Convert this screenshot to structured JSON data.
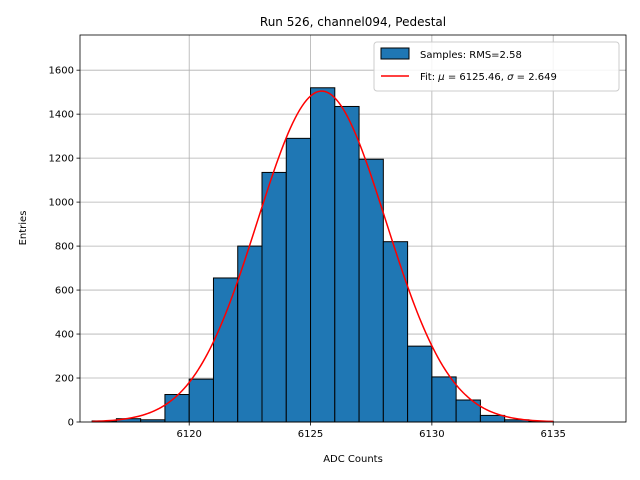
{
  "chart_data": {
    "type": "bar",
    "title": "Run 526, channel094, Pedestal",
    "xlabel": "ADC Counts",
    "ylabel": "Entries",
    "xlim": [
      6115.5,
      6138.0
    ],
    "ylim": [
      0,
      1760
    ],
    "xticks": [
      6120,
      6125,
      6130,
      6135
    ],
    "yticks": [
      0,
      200,
      400,
      600,
      800,
      1000,
      1200,
      1400,
      1600
    ],
    "grid": true,
    "legend_position": "top-right",
    "histogram": {
      "name": "Samples: RMS=2.58",
      "color": "#1f77b4",
      "edge_color": "#000000",
      "bins": [
        {
          "x0": 6116,
          "x1": 6117,
          "value": 5
        },
        {
          "x0": 6117,
          "x1": 6118,
          "value": 15
        },
        {
          "x0": 6118,
          "x1": 6119,
          "value": 10
        },
        {
          "x0": 6119,
          "x1": 6120,
          "value": 125
        },
        {
          "x0": 6120,
          "x1": 6121,
          "value": 195
        },
        {
          "x0": 6121,
          "x1": 6122,
          "value": 655
        },
        {
          "x0": 6122,
          "x1": 6123,
          "value": 800
        },
        {
          "x0": 6123,
          "x1": 6124,
          "value": 1135
        },
        {
          "x0": 6124,
          "x1": 6125,
          "value": 1290
        },
        {
          "x0": 6125,
          "x1": 6126,
          "value": 1520
        },
        {
          "x0": 6126,
          "x1": 6127,
          "value": 1435
        },
        {
          "x0": 6127,
          "x1": 6128,
          "value": 1195
        },
        {
          "x0": 6128,
          "x1": 6129,
          "value": 820
        },
        {
          "x0": 6129,
          "x1": 6130,
          "value": 345
        },
        {
          "x0": 6130,
          "x1": 6131,
          "value": 205
        },
        {
          "x0": 6131,
          "x1": 6132,
          "value": 100
        },
        {
          "x0": 6132,
          "x1": 6133,
          "value": 30
        },
        {
          "x0": 6133,
          "x1": 6134,
          "value": 10
        },
        {
          "x0": 6134,
          "x1": 6135,
          "value": 3
        }
      ]
    },
    "fit": {
      "name": "Fit: μ = 6125.46, σ = 2.649",
      "label_prefix": "Fit: ",
      "mu_symbol": "μ",
      "mu_text": " = 6125.46, ",
      "sigma_symbol": "σ",
      "sigma_text": " = 2.649",
      "color": "#ff0000",
      "mu": 6125.46,
      "sigma": 2.649,
      "amplitude": 1505,
      "x_range": [
        6116,
        6135
      ]
    }
  }
}
